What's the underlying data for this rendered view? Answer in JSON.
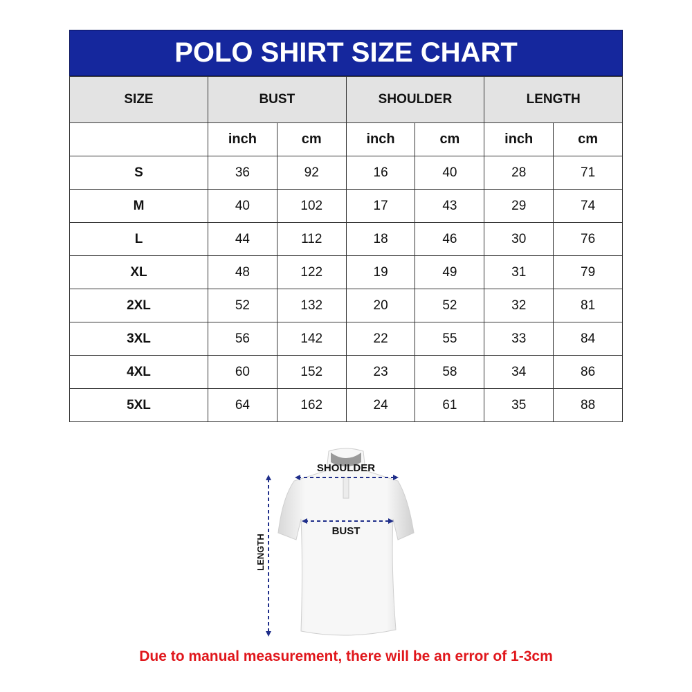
{
  "title": "POLO SHIRT SIZE CHART",
  "headers": [
    "SIZE",
    "BUST",
    "SHOULDER",
    "LENGTH"
  ],
  "units": [
    "inch",
    "cm",
    "inch",
    "cm",
    "inch",
    "cm"
  ],
  "rows": [
    [
      "S",
      "36",
      "92",
      "16",
      "40",
      "28",
      "71"
    ],
    [
      "M",
      "40",
      "102",
      "17",
      "43",
      "29",
      "74"
    ],
    [
      "L",
      "44",
      "112",
      "18",
      "46",
      "30",
      "76"
    ],
    [
      "XL",
      "48",
      "122",
      "19",
      "49",
      "31",
      "79"
    ],
    [
      "2XL",
      "52",
      "132",
      "20",
      "52",
      "32",
      "81"
    ],
    [
      "3XL",
      "56",
      "142",
      "22",
      "55",
      "33",
      "84"
    ],
    [
      "4XL",
      "60",
      "152",
      "23",
      "58",
      "34",
      "86"
    ],
    [
      "5XL",
      "64",
      "162",
      "24",
      "61",
      "35",
      "88"
    ]
  ],
  "diagram": {
    "shoulder": "SHOULDER",
    "bust": "BUST",
    "length": "LENGTH"
  },
  "note": "Due to manual measurement, there will be an error of 1-3cm",
  "colors": {
    "header": "#15279d",
    "note": "#e0161b",
    "arrow": "#1f2e8a"
  }
}
